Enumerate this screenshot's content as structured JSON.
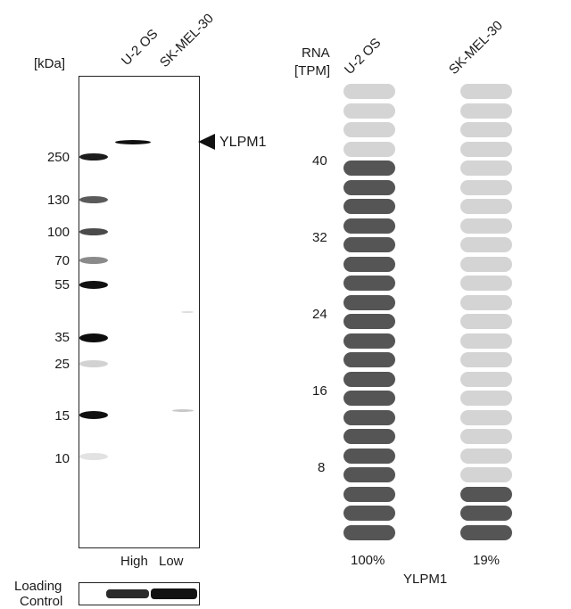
{
  "western_blot": {
    "unit_label": "[kDa]",
    "lanes": [
      "U-2 OS",
      "SK-MEL-30"
    ],
    "markers": [
      "250",
      "130",
      "100",
      "70",
      "55",
      "35",
      "25",
      "15",
      "10"
    ],
    "target_label": "YLPM1",
    "ladder_bottom_labels": [
      "High",
      "Low"
    ],
    "loading_control_label_line1": "Loading",
    "loading_control_label_line2": "Control"
  },
  "rna": {
    "header_line1": "RNA",
    "header_line2": "[TPM]",
    "samples": [
      {
        "name": "U-2 OS",
        "percent": "100%",
        "filled_units": 20
      },
      {
        "name": "SK-MEL-30",
        "percent": "19%",
        "filled_units": 3
      }
    ],
    "total_units": 24,
    "axis_ticks": [
      "40",
      "32",
      "24",
      "16",
      "8"
    ],
    "gene_label": "YLPM1",
    "colors": {
      "filled": "#555555",
      "empty": "#d4d4d4"
    }
  }
}
